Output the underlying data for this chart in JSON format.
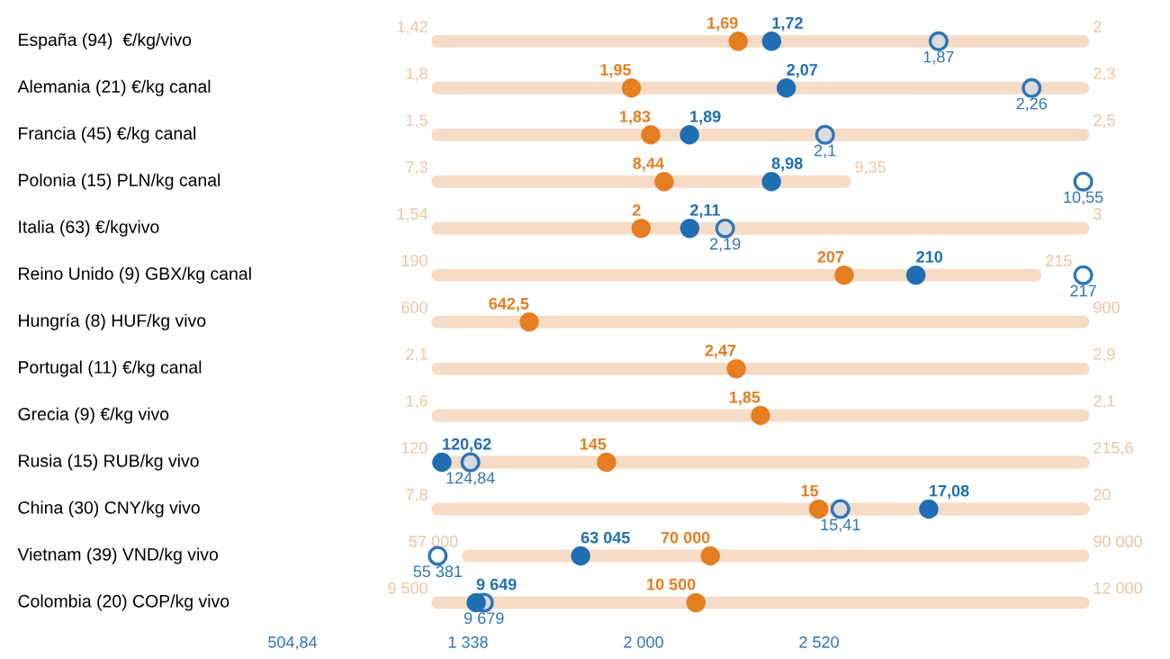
{
  "chart_data": {
    "type": "other",
    "categories": [
      "España (94)  €/kg/vivo",
      "Alemania (21) €/kg canal",
      "Francia (45) €/kg canal",
      "Polonia (15) PLN/kg canal",
      "Italia (63) €/kgvivo",
      "Reino Unido (9) GBX/kg canal",
      "Hungría (8) HUF/kg vivo",
      "Portugal (11) €/kg canal",
      "Grecia (9) €/kg vivo",
      "Rusia (15) RUB/kg vivo",
      "China (30) CNY/kg vivo",
      "Vietnam (39) VND/kg vivo",
      "Colombia (20) COP/kg vivo"
    ],
    "series": [
      {
        "type": "bar",
        "color": "#f0c4a0",
        "values": [
          1.42,
          1.8,
          1.5,
          7.3,
          1.54,
          190,
          600,
          2.1,
          1.6,
          120,
          7.8,
          57000,
          9500
        ],
        "value_labels": [
          "1,42",
          "1,8",
          "1,5",
          "7,3",
          "1,54",
          "190",
          "600",
          "2,1",
          "1,6",
          "120",
          "7,8",
          "57 000",
          "9 500"
        ]
      },
      {
        "type": "bar",
        "color": "#f0c4a0",
        "values": [
          2,
          2.3,
          2.5,
          9.35,
          3,
          215,
          900,
          2.9,
          2.1,
          215.6,
          20,
          90000,
          12000
        ],
        "value_labels": [
          "2",
          "2,3",
          "2,5",
          "9,35",
          "3",
          "215",
          "900",
          "2,9",
          "2,1",
          "215,6",
          "20",
          "90 000",
          "12 000"
        ]
      },
      {
        "type": "scatter",
        "color": "#2e75b6",
        "colors": [
          "#dcdcdc",
          "#dcdcdc",
          "#dcdcdc",
          "#ffffff",
          "#dcdcdc",
          "#ffffff",
          null,
          null,
          null,
          "#dcdcdc",
          "#dcdcdc",
          "#ffffff",
          "#dcdcdc"
        ],
        "values": [
          1.87,
          2.26,
          2.1,
          10.55,
          2.19,
          217,
          null,
          null,
          null,
          124.84,
          15.41,
          55381,
          9679
        ],
        "value_labels": [
          "1,87",
          "2,26",
          "2,1",
          "10,55",
          "2,19",
          "217",
          null,
          null,
          null,
          "124,84",
          "15,41",
          "55 381",
          "9 679"
        ]
      },
      {
        "type": "scatter",
        "color": "#e67e22",
        "values": [
          1.69,
          1.95,
          1.83,
          8.44,
          2,
          207,
          642.5,
          2.47,
          1.85,
          145,
          15,
          70000,
          10500
        ],
        "value_labels": [
          "1,69",
          "1,95",
          "1,83",
          "8,44",
          "2",
          "207",
          "642,5",
          "2,47",
          "1,85",
          "145",
          "15",
          "70 000",
          "10 500"
        ]
      },
      {
        "type": "scatter",
        "color": "#1f6fb2",
        "values": [
          1.72,
          2.07,
          1.89,
          8.98,
          2.11,
          210,
          null,
          null,
          null,
          120.62,
          17.08,
          63045,
          9649
        ],
        "value_labels": [
          "1,72",
          "2,07",
          "1,89",
          "8,98",
          "2,11",
          "210",
          null,
          null,
          null,
          "120,62",
          "17,08",
          "63 045",
          "9 649"
        ]
      }
    ],
    "annotations": [
      "504,84",
      "1 338",
      "2 000",
      "2 520"
    ]
  }
}
